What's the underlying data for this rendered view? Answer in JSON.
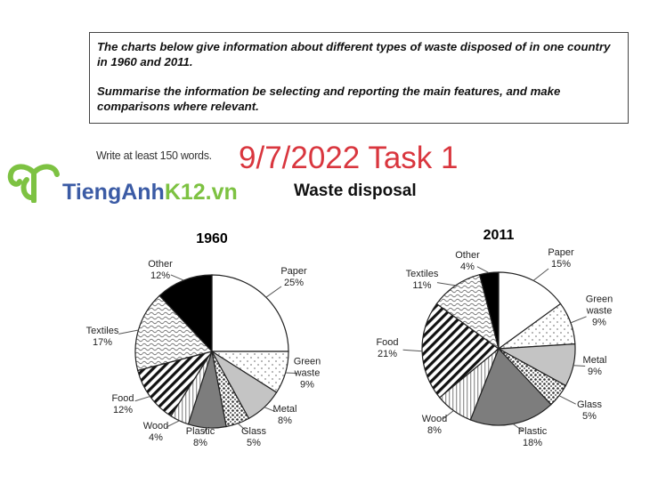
{
  "prompt": {
    "line1": "The charts below give information about different types of waste disposed of in one country in 1960 and 2011.",
    "line2": "Summarise the information be selecting and reporting the main features, and make comparisons where relevant."
  },
  "instruction": "Write at least 150 words.",
  "stamp": "9/7/2022 Task 1",
  "logo": {
    "text_blue": "TiengAnh",
    "text_green": "K12.vn",
    "blue": "#3b5ba5",
    "green": "#7dc242"
  },
  "chart_data": [
    {
      "type": "pie",
      "title": "Waste disposal",
      "subtitle": "1960",
      "categories": [
        "Paper",
        "Green waste",
        "Metal",
        "Glass",
        "Plastic",
        "Wood",
        "Food",
        "Textiles",
        "Other"
      ],
      "values": [
        25,
        9,
        8,
        5,
        8,
        4,
        12,
        17,
        12
      ],
      "labels": [
        "25%",
        "9%",
        "8%",
        "5%",
        "8%",
        "4%",
        "12%",
        "17%",
        "12%"
      ],
      "fills": [
        "white",
        "dots",
        "light-gray",
        "crosshatch",
        "dark-gray",
        "vertical-stripes",
        "diagonal-stripes",
        "waves",
        "black"
      ]
    },
    {
      "type": "pie",
      "title": "Waste disposal",
      "subtitle": "2011",
      "categories": [
        "Paper",
        "Green waste",
        "Metal",
        "Glass",
        "Plastic",
        "Wood",
        "Food",
        "Textiles",
        "Other"
      ],
      "values": [
        15,
        9,
        9,
        5,
        18,
        8,
        21,
        11,
        4
      ],
      "labels": [
        "15%",
        "9%",
        "9%",
        "5%",
        "18%",
        "8%",
        "21%",
        "11%",
        "4%"
      ],
      "fills": [
        "white",
        "dots",
        "light-gray",
        "crosshatch",
        "dark-gray",
        "vertical-stripes",
        "diagonal-stripes",
        "waves",
        "black"
      ]
    }
  ]
}
